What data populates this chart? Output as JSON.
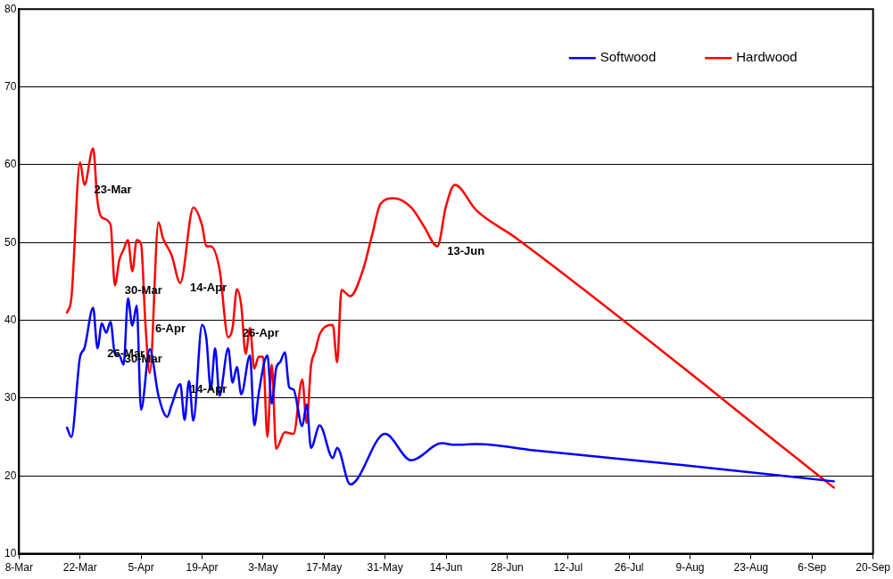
{
  "chart_data": {
    "type": "line",
    "xlim": [
      "--03-08",
      "--09-20"
    ],
    "xticks": [
      {
        "value": "--03-08",
        "label": "8-Mar"
      },
      {
        "value": "--03-22",
        "label": "22-Mar"
      },
      {
        "value": "--04-05",
        "label": "5-Apr"
      },
      {
        "value": "--04-19",
        "label": "19-Apr"
      },
      {
        "value": "--05-03",
        "label": "3-May"
      },
      {
        "value": "--05-17",
        "label": "17-May"
      },
      {
        "value": "--05-31",
        "label": "31-May"
      },
      {
        "value": "--06-14",
        "label": "14-Jun"
      },
      {
        "value": "--06-28",
        "label": "28-Jun"
      },
      {
        "value": "--07-12",
        "label": "12-Jul"
      },
      {
        "value": "--07-26",
        "label": "26-Jul"
      },
      {
        "value": "--08-09",
        "label": "9-Aug"
      },
      {
        "value": "--08-23",
        "label": "23-Aug"
      },
      {
        "value": "--09-06",
        "label": "6-Sep"
      },
      {
        "value": "--09-20",
        "label": "20-Sep"
      }
    ],
    "ylim": [
      10,
      80
    ],
    "yticks": [
      10,
      20,
      30,
      40,
      50,
      60,
      70,
      80
    ],
    "grid": "y",
    "legend": "top right",
    "marker": "none",
    "line_style": "solid",
    "series": [
      {
        "name": "Softwood",
        "color": "#0000ff",
        "x": [
          "--03-19",
          "--03-20",
          "--03-22",
          "--03-23",
          "--03-25",
          "--03-26",
          "--03-27",
          "--03-28",
          "--03-29",
          "--03-30",
          "--03-31",
          "--04-01",
          "--04-02",
          "--04-03",
          "--04-04",
          "--04-05",
          "--04-07",
          "--04-09",
          "--04-11",
          "--04-12",
          "--04-14",
          "--04-15",
          "--04-16",
          "--04-17",
          "--04-19",
          "--04-20",
          "--04-21",
          "--04-22",
          "--04-23",
          "--04-25",
          "--04-26",
          "--04-27",
          "--04-28",
          "--04-30",
          "--05-01",
          "--05-02",
          "--05-04",
          "--05-05",
          "--05-06",
          "--05-07",
          "--05-08",
          "--05-09",
          "--05-10",
          "--05-12",
          "--05-13",
          "--05-14",
          "--05-16",
          "--05-19",
          "--05-20",
          "--05-23",
          "--05-31",
          "--06-06",
          "--06-13",
          "--06-16",
          "--06-21",
          "--07-04",
          "--08-09",
          "--09-11"
        ],
        "values": [
          26.2,
          25.0,
          35.3,
          36.4,
          41.6,
          36.4,
          39.6,
          38.4,
          39.8,
          35.7,
          35.5,
          34.3,
          42.8,
          39.3,
          41.9,
          28.5,
          36.3,
          30.3,
          27.6,
          29.1,
          31.8,
          27.2,
          32.2,
          27.1,
          39.4,
          37.6,
          31.1,
          36.4,
          30.3,
          36.4,
          32.0,
          34.0,
          30.5,
          35.5,
          26.5,
          30.6,
          35.5,
          29.3,
          33.8,
          34.7,
          35.9,
          31.4,
          31.1,
          26.4,
          29.2,
          23.6,
          26.5,
          22.3,
          23.6,
          18.9,
          25.4,
          22.0,
          24.2,
          24.0,
          24.1,
          23.3,
          21.3,
          19.3
        ]
      },
      {
        "name": "Hardwood",
        "color": "#ff0000",
        "x": [
          "--03-19",
          "--03-20",
          "--03-22",
          "--03-23",
          "--03-25",
          "--03-26",
          "--03-27",
          "--03-29",
          "--03-30",
          "--03-31",
          "--04-01",
          "--04-02",
          "--04-03",
          "--04-04",
          "--04-05",
          "--04-06",
          "--04-07",
          "--04-09",
          "--04-10",
          "--04-12",
          "--04-14",
          "--04-17",
          "--04-19",
          "--04-20",
          "--04-21",
          "--04-23",
          "--04-25",
          "--04-26",
          "--04-27",
          "--04-28",
          "--04-29",
          "--04-30",
          "--05-01",
          "--05-02",
          "--05-03",
          "--05-04",
          "--05-05",
          "--05-06",
          "--05-08",
          "--05-10",
          "--05-12",
          "--05-13",
          "--05-14",
          "--05-15",
          "--05-16",
          "--05-19",
          "--05-20",
          "--05-21",
          "--05-23",
          "--05-26",
          "--05-28",
          "--05-30",
          "--06-02",
          "--06-06",
          "--06-09",
          "--06-12",
          "--06-14",
          "--06-16",
          "--06-21",
          "--06-30",
          "--09-11"
        ],
        "values": [
          41.0,
          42.8,
          60.3,
          57.4,
          62.1,
          55.3,
          53.2,
          52.3,
          44.5,
          47.7,
          49.1,
          50.3,
          46.3,
          50.3,
          49.8,
          39.6,
          33.2,
          52.6,
          50.6,
          48.4,
          44.8,
          54.5,
          52.2,
          49.5,
          49.5,
          46.6,
          37.8,
          39.0,
          44.0,
          41.9,
          35.7,
          39.0,
          33.8,
          35.3,
          35.3,
          25.0,
          34.3,
          23.5,
          25.6,
          25.4,
          32.4,
          26.8,
          34.1,
          36.1,
          38.2,
          39.4,
          34.6,
          43.9,
          43.1,
          46.6,
          50.9,
          55.0,
          55.7,
          54.5,
          52.0,
          49.5,
          54.7,
          57.4,
          54.1,
          50.6,
          18.5
        ]
      }
    ],
    "annotations": [
      {
        "text": "23-Mar",
        "x": "--03-23",
        "y": 57.4
      },
      {
        "text": "30-Mar",
        "x": "--03-30",
        "y": 44.5
      },
      {
        "text": "6-Apr",
        "x": "--04-06",
        "y": 39.6
      },
      {
        "text": "14-Apr",
        "x": "--04-14",
        "y": 44.8
      },
      {
        "text": "26-Apr",
        "x": "--04-26",
        "y": 39.0
      },
      {
        "text": "13-Jun",
        "x": "--06-12",
        "y": 49.5
      },
      {
        "text": "26-Mar",
        "x": "--03-26",
        "y": 36.4
      },
      {
        "text": "30-Mar",
        "x": "--03-30",
        "y": 35.7
      },
      {
        "text": "14-Apr",
        "x": "--04-14",
        "y": 31.8
      }
    ]
  }
}
